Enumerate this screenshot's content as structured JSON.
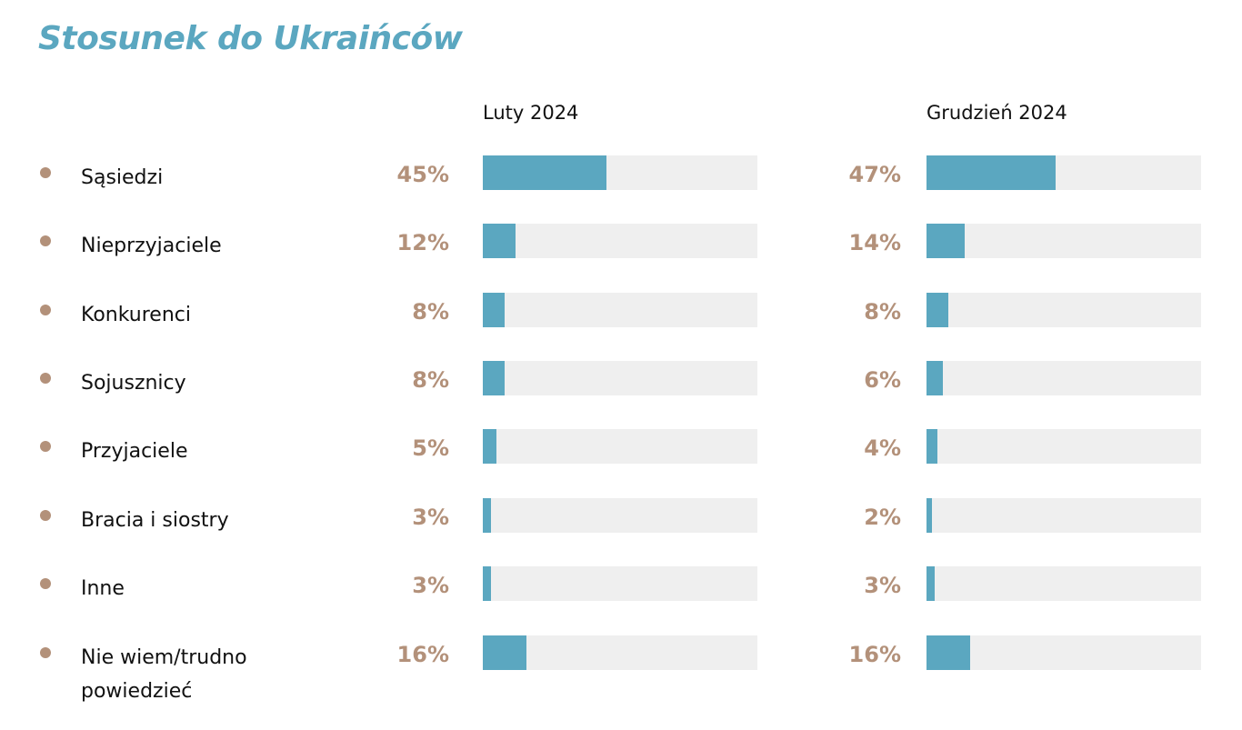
{
  "title": "Stosunek do Ukraińców",
  "chart_data": {
    "type": "bar",
    "orientation": "horizontal",
    "title": "Stosunek do Ukraińców",
    "categories": [
      "Sąsiedzi",
      "Nieprzyjaciele",
      "Konkurenci",
      "Sojusznicy",
      "Przyjaciele",
      "Bracia i siostry",
      "Inne",
      "Nie wiem/trudno powiedzieć"
    ],
    "series": [
      {
        "name": "Luty 2024",
        "values": [
          45,
          12,
          8,
          8,
          5,
          3,
          3,
          16
        ],
        "labels": [
          "45%",
          "12%",
          "8%",
          "8%",
          "5%",
          "3%",
          "3%",
          "16%"
        ]
      },
      {
        "name": "Grudzień 2024",
        "values": [
          47,
          14,
          8,
          6,
          4,
          2,
          3,
          16
        ],
        "labels": [
          "47%",
          "14%",
          "8%",
          "6%",
          "4%",
          "2%",
          "3%",
          "16%"
        ]
      }
    ],
    "unit": "%",
    "xlim": [
      0,
      100
    ],
    "colors": {
      "bar": "#5ba7c0",
      "track": "#efefef",
      "value_label": "#b3917a",
      "bullet": "#b3917a",
      "title": "#5ba7c0"
    }
  }
}
